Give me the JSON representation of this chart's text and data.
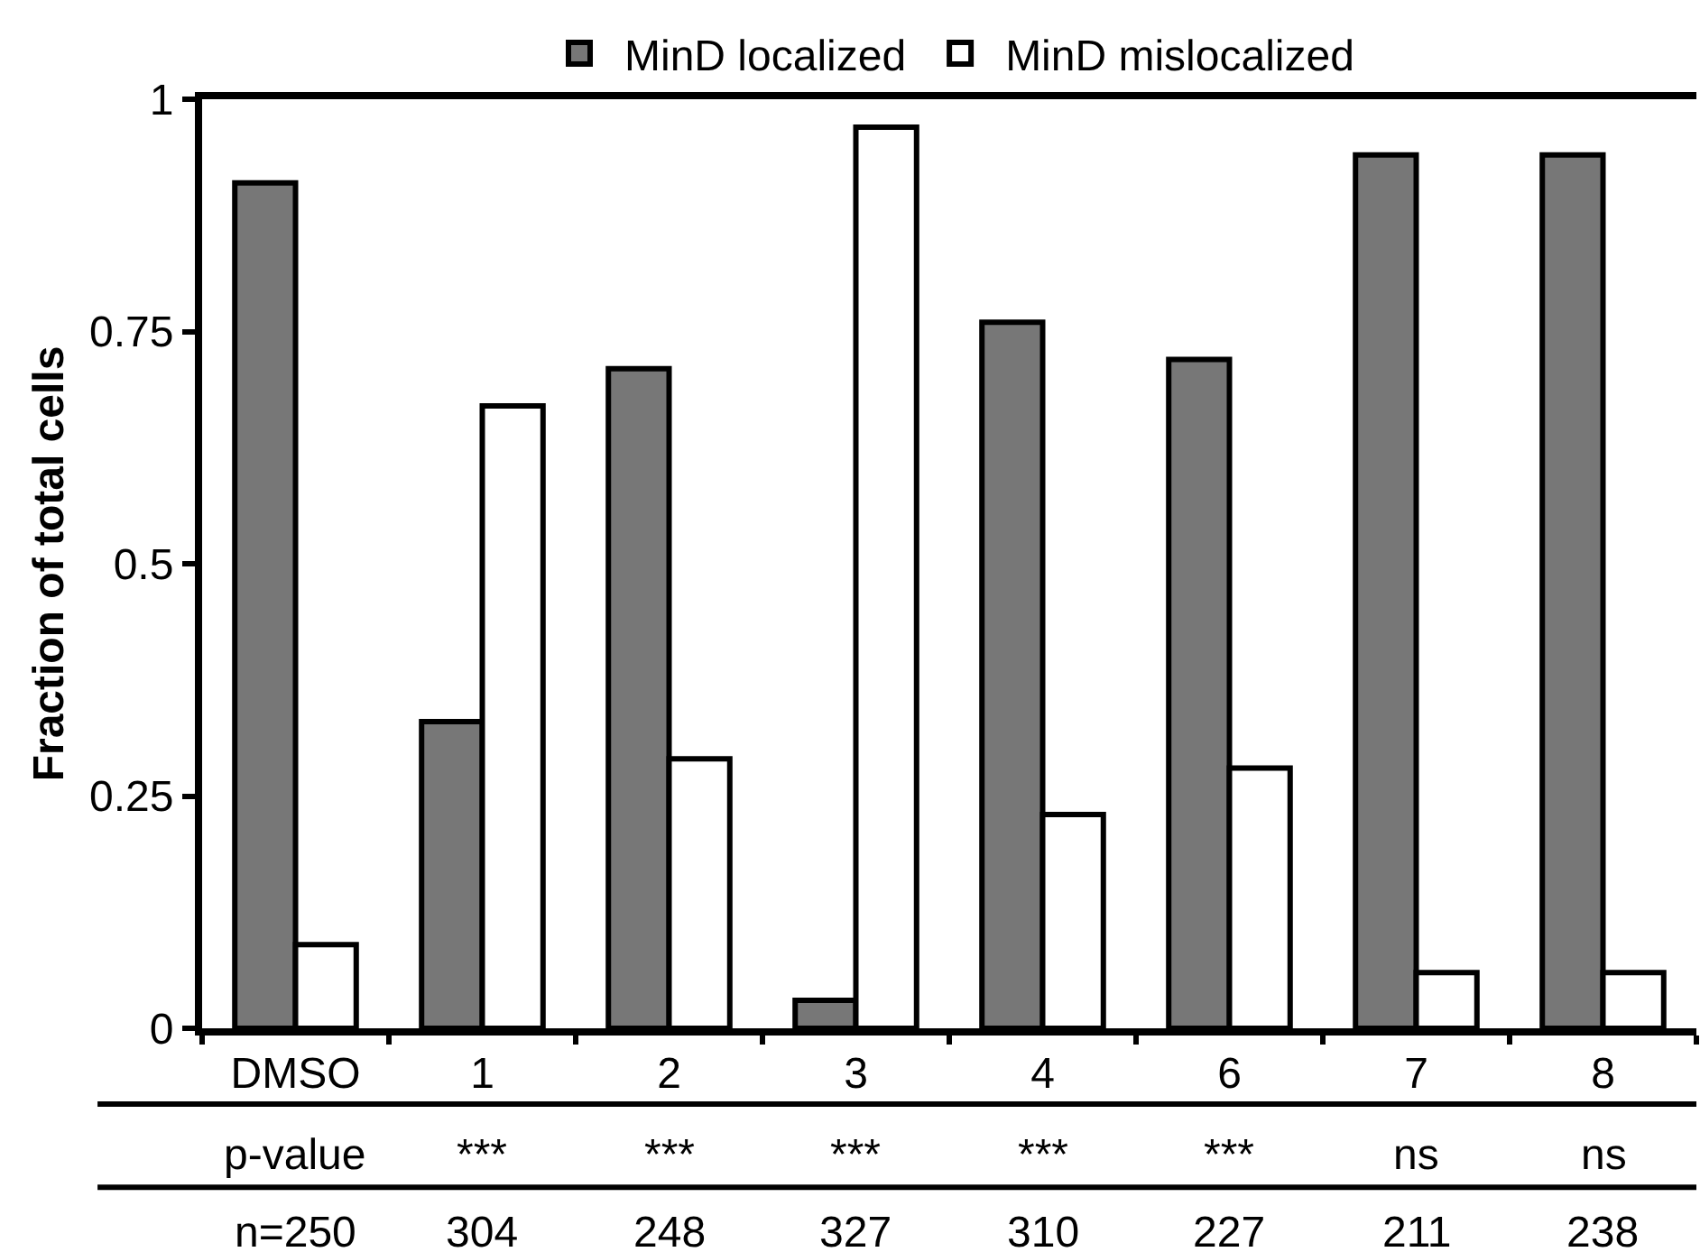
{
  "chart_data": {
    "type": "bar",
    "ylabel": "Fraction of total cells",
    "categories": [
      "DMSO",
      "1",
      "2",
      "3",
      "4",
      "6",
      "7",
      "8"
    ],
    "series": [
      {
        "name": "MinD localized",
        "color": "#777777",
        "values": [
          0.91,
          0.33,
          0.71,
          0.03,
          0.76,
          0.72,
          0.94,
          0.94
        ]
      },
      {
        "name": "MinD mislocalized",
        "color": "#ffffff",
        "values": [
          0.09,
          0.67,
          0.29,
          0.97,
          0.23,
          0.28,
          0.06,
          0.06
        ]
      }
    ],
    "ylim": [
      0,
      1
    ],
    "yticks": [
      0,
      0.25,
      0.5,
      0.75,
      1
    ],
    "grid": false,
    "legend": "top",
    "annotations": [
      "p-value",
      "***",
      "***",
      "***",
      "***",
      "***",
      "ns",
      "ns",
      "n=250",
      "304",
      "248",
      "327",
      "310",
      "227",
      "211",
      "238"
    ]
  }
}
